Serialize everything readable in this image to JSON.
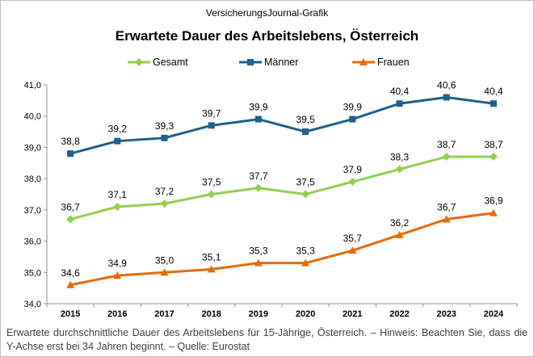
{
  "chart_data": {
    "type": "line",
    "source_label": "VersicherungsJournal-Grafik",
    "title": "Erwartete Dauer des Arbeitslebens, Österreich",
    "caption": "Erwartete durchschnittliche Dauer des Arbeitslebens für 15-Jährige, Österreich. – Hinweis: Beachten Sie, dass die Y-Achse erst bei 34 Jahren beginnt. – Quelle: Eurostat",
    "categories": [
      "2015",
      "2016",
      "2017",
      "2018",
      "2019",
      "2020",
      "2021",
      "2022",
      "2023",
      "2024"
    ],
    "ylim": [
      34,
      41
    ],
    "yticks": [
      "34,0",
      "35,0",
      "36,0",
      "37,0",
      "38,0",
      "39,0",
      "40,0",
      "41,0"
    ],
    "grid": false,
    "legend_position": "top",
    "series": [
      {
        "name": "Gesamt",
        "color": "#92d050",
        "marker": "diamond",
        "values": [
          36.7,
          37.1,
          37.2,
          37.5,
          37.7,
          37.5,
          37.9,
          38.3,
          38.7,
          38.7
        ],
        "labels": [
          "36,7",
          "37,1",
          "37,2",
          "37,5",
          "37,7",
          "37,5",
          "37,9",
          "38,3",
          "38,7",
          "38,7"
        ]
      },
      {
        "name": "Männer",
        "color": "#1f5f8b",
        "marker": "square",
        "values": [
          38.8,
          39.2,
          39.3,
          39.7,
          39.9,
          39.5,
          39.9,
          40.4,
          40.6,
          40.4
        ],
        "labels": [
          "38,8",
          "39,2",
          "39,3",
          "39,7",
          "39,9",
          "39,5",
          "39,9",
          "40,4",
          "40,6",
          "40,4"
        ]
      },
      {
        "name": "Frauen",
        "color": "#e46c0a",
        "marker": "triangle",
        "values": [
          34.6,
          34.9,
          35.0,
          35.1,
          35.3,
          35.3,
          35.7,
          36.2,
          36.7,
          36.9
        ],
        "labels": [
          "34,6",
          "34,9",
          "35,0",
          "35,1",
          "35,3",
          "35,3",
          "35,7",
          "36,2",
          "36,7",
          "36,9"
        ]
      }
    ]
  }
}
